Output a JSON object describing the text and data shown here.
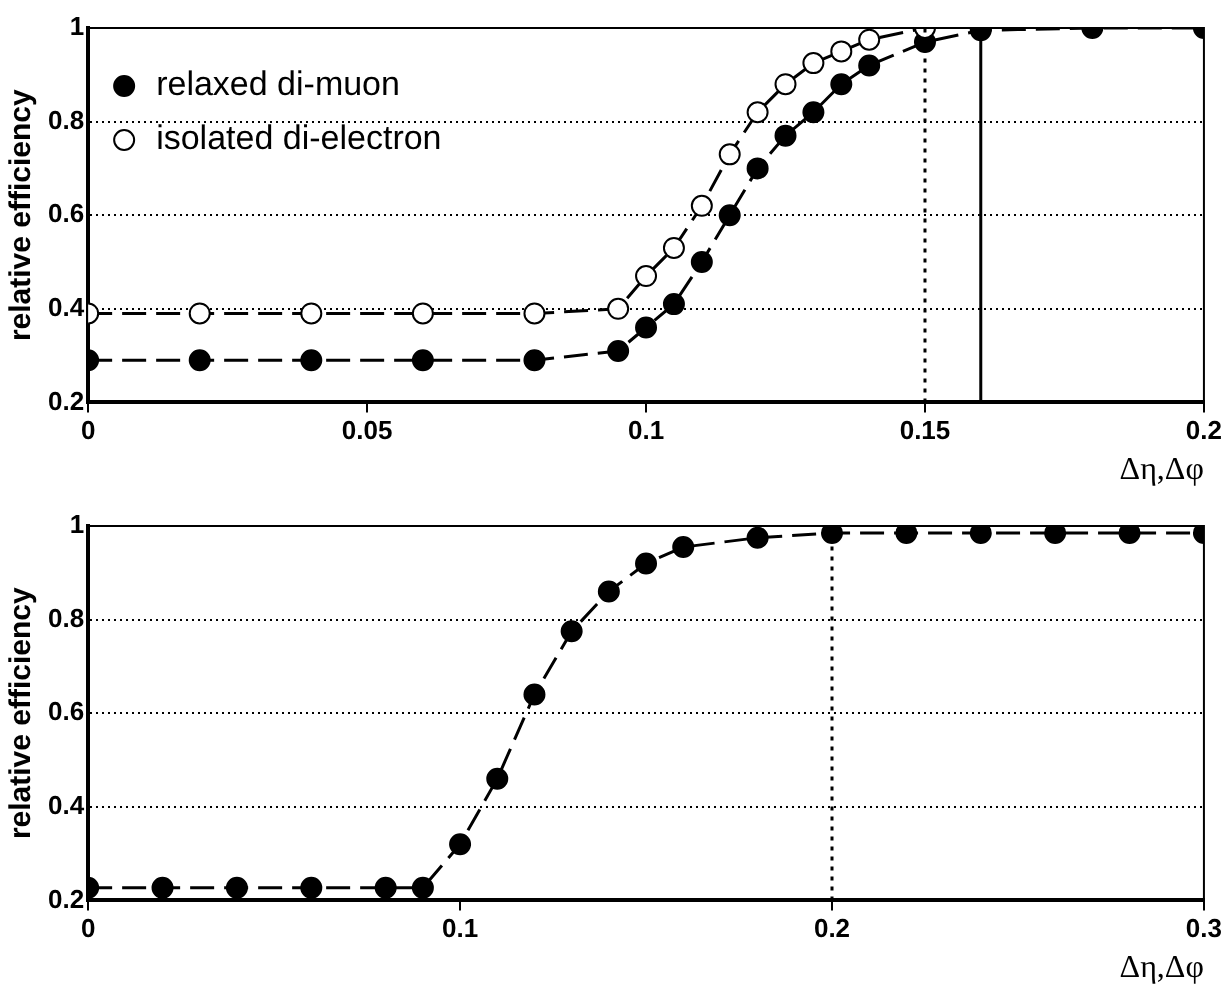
{
  "chart_data": [
    {
      "type": "line",
      "xlabel": "Δη,Δφ",
      "ylabel": "relative efficiency",
      "xlim": [
        0,
        0.2
      ],
      "xticks": [
        0,
        0.05,
        0.1,
        0.15,
        0.2
      ],
      "ylim": [
        0.2,
        1
      ],
      "yticks": [
        0.2,
        0.4,
        0.6,
        0.8,
        1
      ],
      "grid": "y",
      "legend": "top left",
      "line_style": "dashed",
      "series": [
        {
          "name": "relaxed di-muon",
          "color": "#000000",
          "marker": "circle",
          "x": [
            0,
            0.02,
            0.04,
            0.06,
            0.08,
            0.095,
            0.1,
            0.105,
            0.11,
            0.115,
            0.12,
            0.125,
            0.13,
            0.135,
            0.14,
            0.15,
            0.16,
            0.18,
            0.2
          ],
          "values": [
            0.29,
            0.29,
            0.29,
            0.29,
            0.29,
            0.31,
            0.36,
            0.41,
            0.5,
            0.6,
            0.7,
            0.77,
            0.82,
            0.88,
            0.92,
            0.97,
            0.995,
            1,
            1
          ]
        },
        {
          "name": "isolated di-electron",
          "color": "#000000",
          "marker": "circle-open",
          "x": [
            0,
            0.02,
            0.04,
            0.06,
            0.08,
            0.095,
            0.1,
            0.105,
            0.11,
            0.115,
            0.12,
            0.125,
            0.13,
            0.135,
            0.14,
            0.15
          ],
          "values": [
            0.39,
            0.39,
            0.39,
            0.39,
            0.39,
            0.4,
            0.47,
            0.53,
            0.62,
            0.73,
            0.82,
            0.88,
            0.925,
            0.95,
            0.975,
            1
          ]
        }
      ],
      "ref_lines": [
        {
          "axis": "x",
          "value": 0.15,
          "line_style": "dotted",
          "color": "#000000"
        },
        {
          "axis": "x",
          "value": 0.16,
          "line_style": "solid",
          "color": "#000000"
        }
      ]
    },
    {
      "type": "line",
      "xlabel": "Δη,Δφ",
      "ylabel": "relative efficiency",
      "xlim": [
        0,
        0.3
      ],
      "xticks": [
        0,
        0.1,
        0.2,
        0.3
      ],
      "ylim": [
        0.2,
        1
      ],
      "yticks": [
        0.2,
        0.4,
        0.6,
        0.8,
        1
      ],
      "grid": "y",
      "line_style": "dashed",
      "series": [
        {
          "color": "#000000",
          "marker": "circle",
          "x": [
            0,
            0.02,
            0.04,
            0.06,
            0.08,
            0.09,
            0.1,
            0.11,
            0.12,
            0.13,
            0.14,
            0.15,
            0.16,
            0.18,
            0.2,
            0.22,
            0.24,
            0.26,
            0.28,
            0.3
          ],
          "values": [
            0.227,
            0.227,
            0.227,
            0.227,
            0.227,
            0.227,
            0.32,
            0.46,
            0.64,
            0.775,
            0.86,
            0.92,
            0.955,
            0.975,
            0.985,
            0.985,
            0.985,
            0.985,
            0.985,
            0.985
          ]
        }
      ],
      "ref_lines": [
        {
          "axis": "x",
          "value": 0.2,
          "line_style": "dotted",
          "color": "#000000"
        }
      ]
    }
  ]
}
